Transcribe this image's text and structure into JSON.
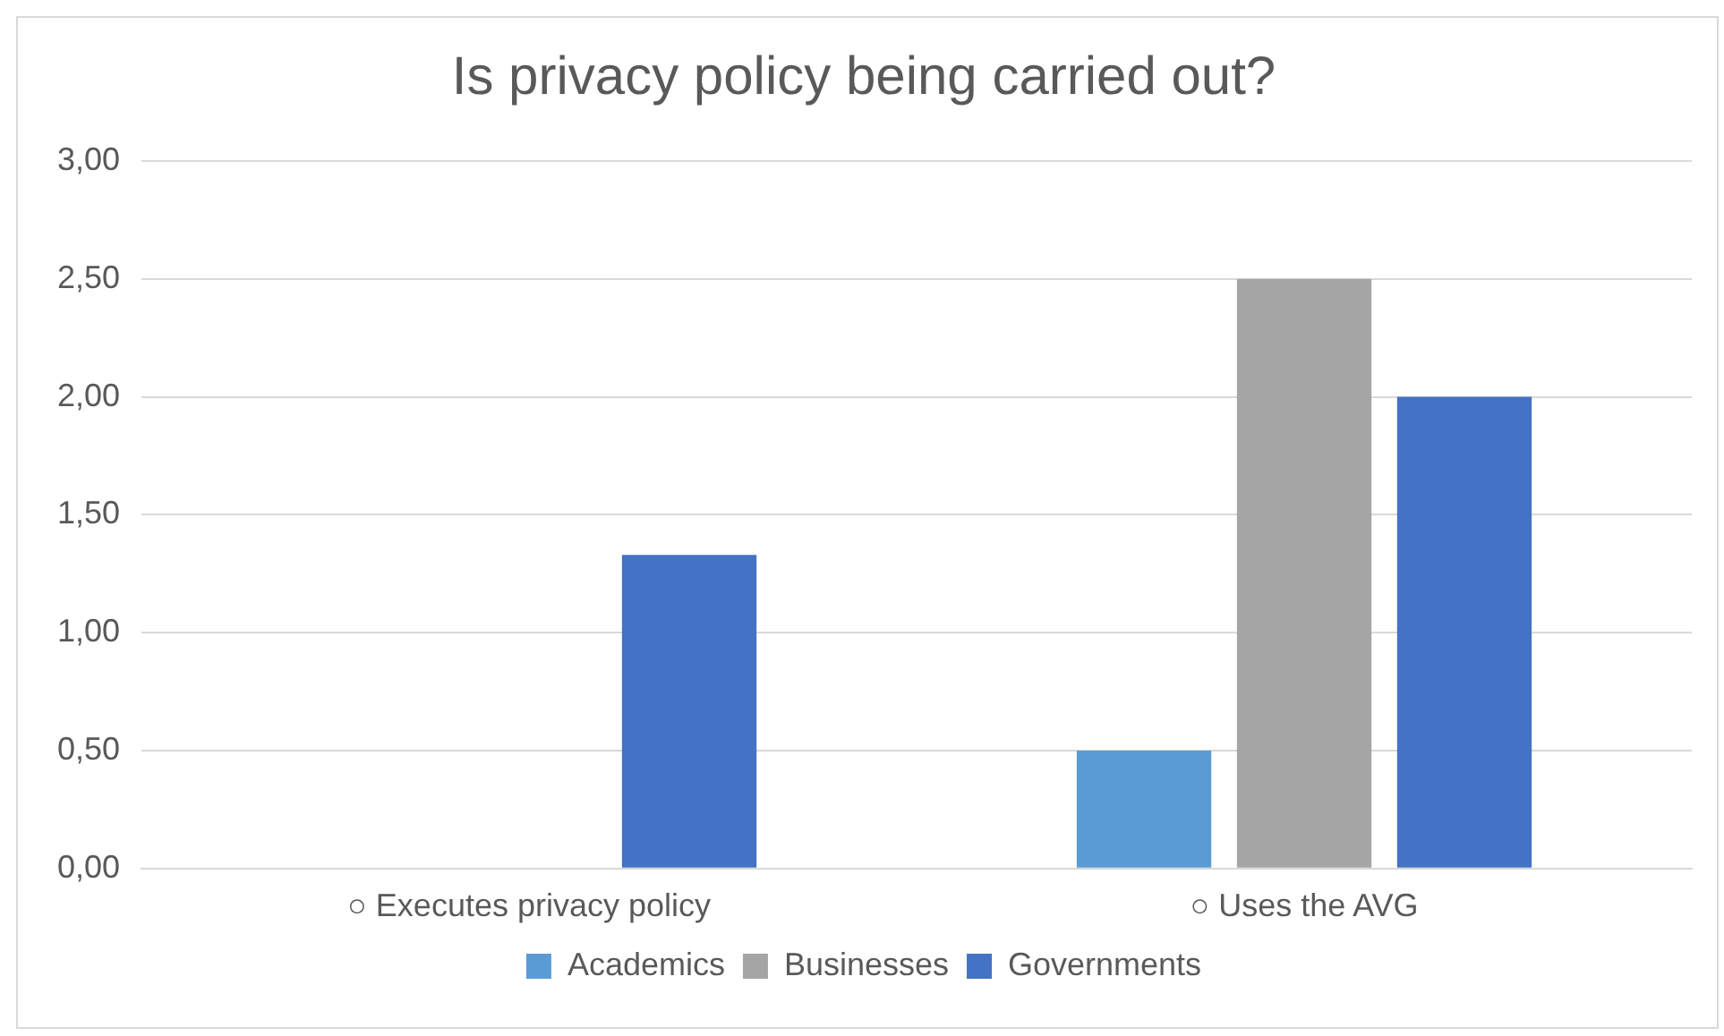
{
  "chart_data": {
    "type": "bar",
    "title": "Is privacy policy being carried out?",
    "categories": [
      "○ Executes privacy policy",
      "○ Uses the AVG"
    ],
    "series": [
      {
        "name": "Academics",
        "color": "#5b9bd5",
        "values": [
          0,
          0.5
        ]
      },
      {
        "name": "Businesses",
        "color": "#a5a5a5",
        "values": [
          0,
          2.5
        ]
      },
      {
        "name": "Governments",
        "color": "#4472c4",
        "values": [
          1.33,
          2.0
        ]
      }
    ],
    "ylim": [
      0,
      3
    ],
    "yticks": [
      {
        "value": 0,
        "label": "0,00"
      },
      {
        "value": 0.5,
        "label": "0,50"
      },
      {
        "value": 1,
        "label": "1,00"
      },
      {
        "value": 1.5,
        "label": "1,50"
      },
      {
        "value": 2,
        "label": "2,00"
      },
      {
        "value": 2.5,
        "label": "2,50"
      },
      {
        "value": 3,
        "label": "3,00"
      }
    ],
    "grid": "y",
    "legend": "bottom"
  }
}
